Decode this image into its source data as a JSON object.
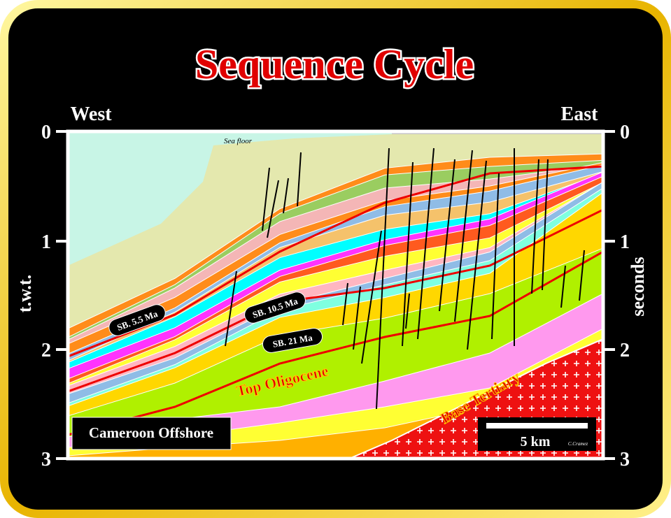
{
  "title": "Sequence Cycle",
  "directions": {
    "west": "West",
    "east": "East"
  },
  "axes": {
    "left_label": "t.w.t.",
    "right_label": "seconds",
    "ticks": [
      0,
      1,
      2,
      3
    ]
  },
  "labels": {
    "sea_floor": "Sea floor",
    "sb_5_5": "SB. 5.5 Ma",
    "sb_10_5": "SB. 10.5 Ma",
    "sb_21": "SB. 21 Ma",
    "top_oligocene": "Top Oligocene",
    "base_tertiary": "Base Tertiary"
  },
  "location": "Cameroon Offshore",
  "scale": {
    "label": "5 km",
    "credit": "C.Cramez"
  }
}
